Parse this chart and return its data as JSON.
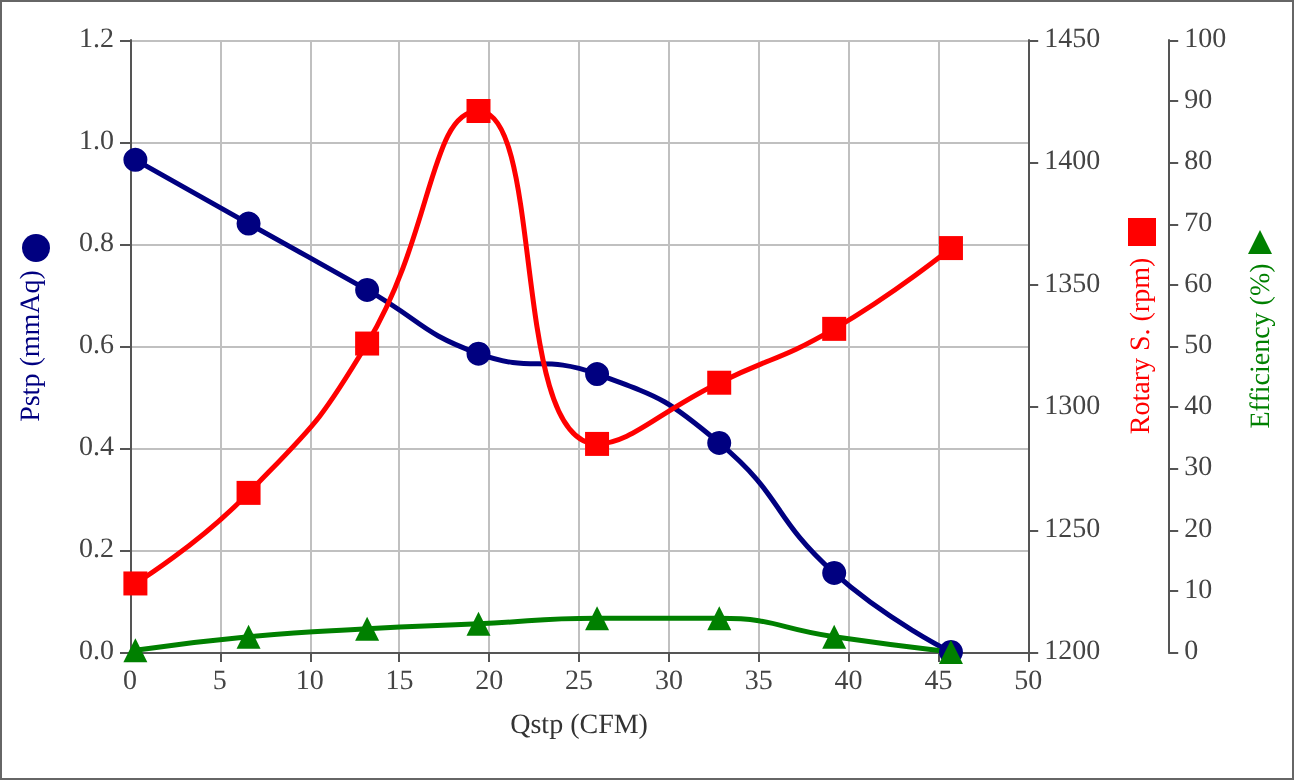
{
  "chart_data": {
    "type": "line",
    "xlabel": "Qstp (CFM)",
    "ylabel": "Pstp (mmAq)",
    "y2label": "Rotary S. (rpm)",
    "y3label": "Efficiency (%)",
    "x": [
      0.3,
      6.6,
      13.2,
      19.4,
      26,
      32.8,
      39.2,
      45.7
    ],
    "series": [
      {
        "color": "#000080",
        "marker": "circle",
        "values": [
          0.965,
          0.84,
          0.71,
          0.585,
          0.545,
          0.41,
          0.155,
          0
        ]
      },
      {
        "color": "#ff0000",
        "marker": "square",
        "axis": "y2",
        "values": [
          1228,
          1265,
          1326,
          1421,
          1285,
          1310,
          1332,
          1365
        ]
      },
      {
        "color": "#008000",
        "marker": "triangle",
        "axis": "y3",
        "values": [
          0.3,
          2.5,
          3.8,
          4.6,
          5.5,
          5.5,
          2.5,
          0
        ]
      }
    ],
    "xlim": [
      0,
      50
    ],
    "xticks": [
      0,
      5,
      10,
      15,
      20,
      25,
      30,
      35,
      40,
      45,
      50
    ],
    "ylim": [
      0,
      1.2
    ],
    "yticks": [
      {
        "value": 0,
        "label": "0.0"
      },
      0.2,
      0.4,
      0.6,
      0.8,
      {
        "value": 1,
        "label": "1.0"
      },
      1.2
    ],
    "y2lim": [
      1200,
      1450
    ],
    "y2ticks": [
      1200,
      1250,
      1300,
      1350,
      1400,
      1450
    ],
    "y3lim": [
      0,
      100
    ],
    "y3ticks": [
      0,
      10,
      20,
      30,
      40,
      50,
      60,
      70,
      80,
      90,
      100
    ],
    "grid": true,
    "line_style": "solid"
  }
}
